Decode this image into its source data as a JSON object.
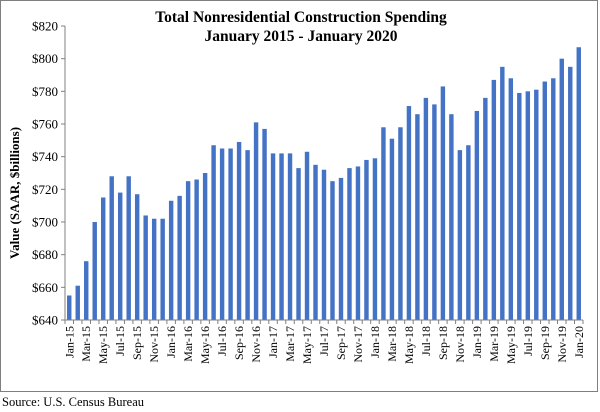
{
  "source_note": "Source:  U.S. Census Bureau",
  "chart_data": {
    "type": "bar",
    "title": "Total Nonresidential Construction Spending",
    "subtitle": "January 2015 - January 2020",
    "xlabel": "",
    "ylabel": "Value (SAAR, $billions)",
    "ylim": [
      640,
      820
    ],
    "yticks": [
      640,
      660,
      680,
      700,
      720,
      740,
      760,
      780,
      800,
      820
    ],
    "ytick_labels": [
      "$640",
      "$660",
      "$680",
      "$700",
      "$720",
      "$740",
      "$760",
      "$780",
      "$800",
      "$820"
    ],
    "grid": false,
    "bar_color": "#4472C4",
    "categories": [
      "Jan-15",
      "Feb-15",
      "Mar-15",
      "Apr-15",
      "May-15",
      "Jun-15",
      "Jul-15",
      "Aug-15",
      "Sep-15",
      "Oct-15",
      "Nov-15",
      "Dec-15",
      "Jan-16",
      "Feb-16",
      "Mar-16",
      "Apr-16",
      "May-16",
      "Jun-16",
      "Jul-16",
      "Aug-16",
      "Sep-16",
      "Oct-16",
      "Nov-16",
      "Dec-16",
      "Jan-17",
      "Feb-17",
      "Mar-17",
      "Apr-17",
      "May-17",
      "Jun-17",
      "Jul-17",
      "Aug-17",
      "Sep-17",
      "Oct-17",
      "Nov-17",
      "Dec-17",
      "Jan-18",
      "Feb-18",
      "Mar-18",
      "Apr-18",
      "May-18",
      "Jun-18",
      "Jul-18",
      "Aug-18",
      "Sep-18",
      "Oct-18",
      "Nov-18",
      "Dec-18",
      "Jan-19",
      "Feb-19",
      "Mar-19",
      "Apr-19",
      "May-19",
      "Jun-19",
      "Jul-19",
      "Aug-19",
      "Sep-19",
      "Oct-19",
      "Nov-19",
      "Dec-19",
      "Jan-20"
    ],
    "x_tick_labels": [
      "Jan-15",
      "Mar-15",
      "May-15",
      "Jul-15",
      "Sep-15",
      "Nov-15",
      "Jan-16",
      "Mar-16",
      "May-16",
      "Jul-16",
      "Sep-16",
      "Nov-16",
      "Jan-17",
      "Mar-17",
      "May-17",
      "Jul-17",
      "Sep-17",
      "Nov-17",
      "Jan-18",
      "Mar-18",
      "May-18",
      "Jul-18",
      "Sep-18",
      "Nov-18",
      "Jan-19",
      "Mar-19",
      "May-19",
      "Jul-19",
      "Sep-19",
      "Nov-19",
      "Jan-20"
    ],
    "values": [
      655,
      661,
      676,
      700,
      715,
      728,
      718,
      728,
      717,
      704,
      702,
      702,
      713,
      716,
      725,
      726,
      730,
      747,
      745,
      745,
      749,
      744,
      761,
      757,
      742,
      742,
      742,
      733,
      743,
      735,
      732,
      725,
      727,
      733,
      734,
      738,
      739,
      758,
      751,
      758,
      771,
      766,
      776,
      772,
      783,
      766,
      744,
      747,
      768,
      776,
      787,
      795,
      788,
      779,
      780,
      781,
      786,
      788,
      800,
      795,
      807
    ]
  }
}
